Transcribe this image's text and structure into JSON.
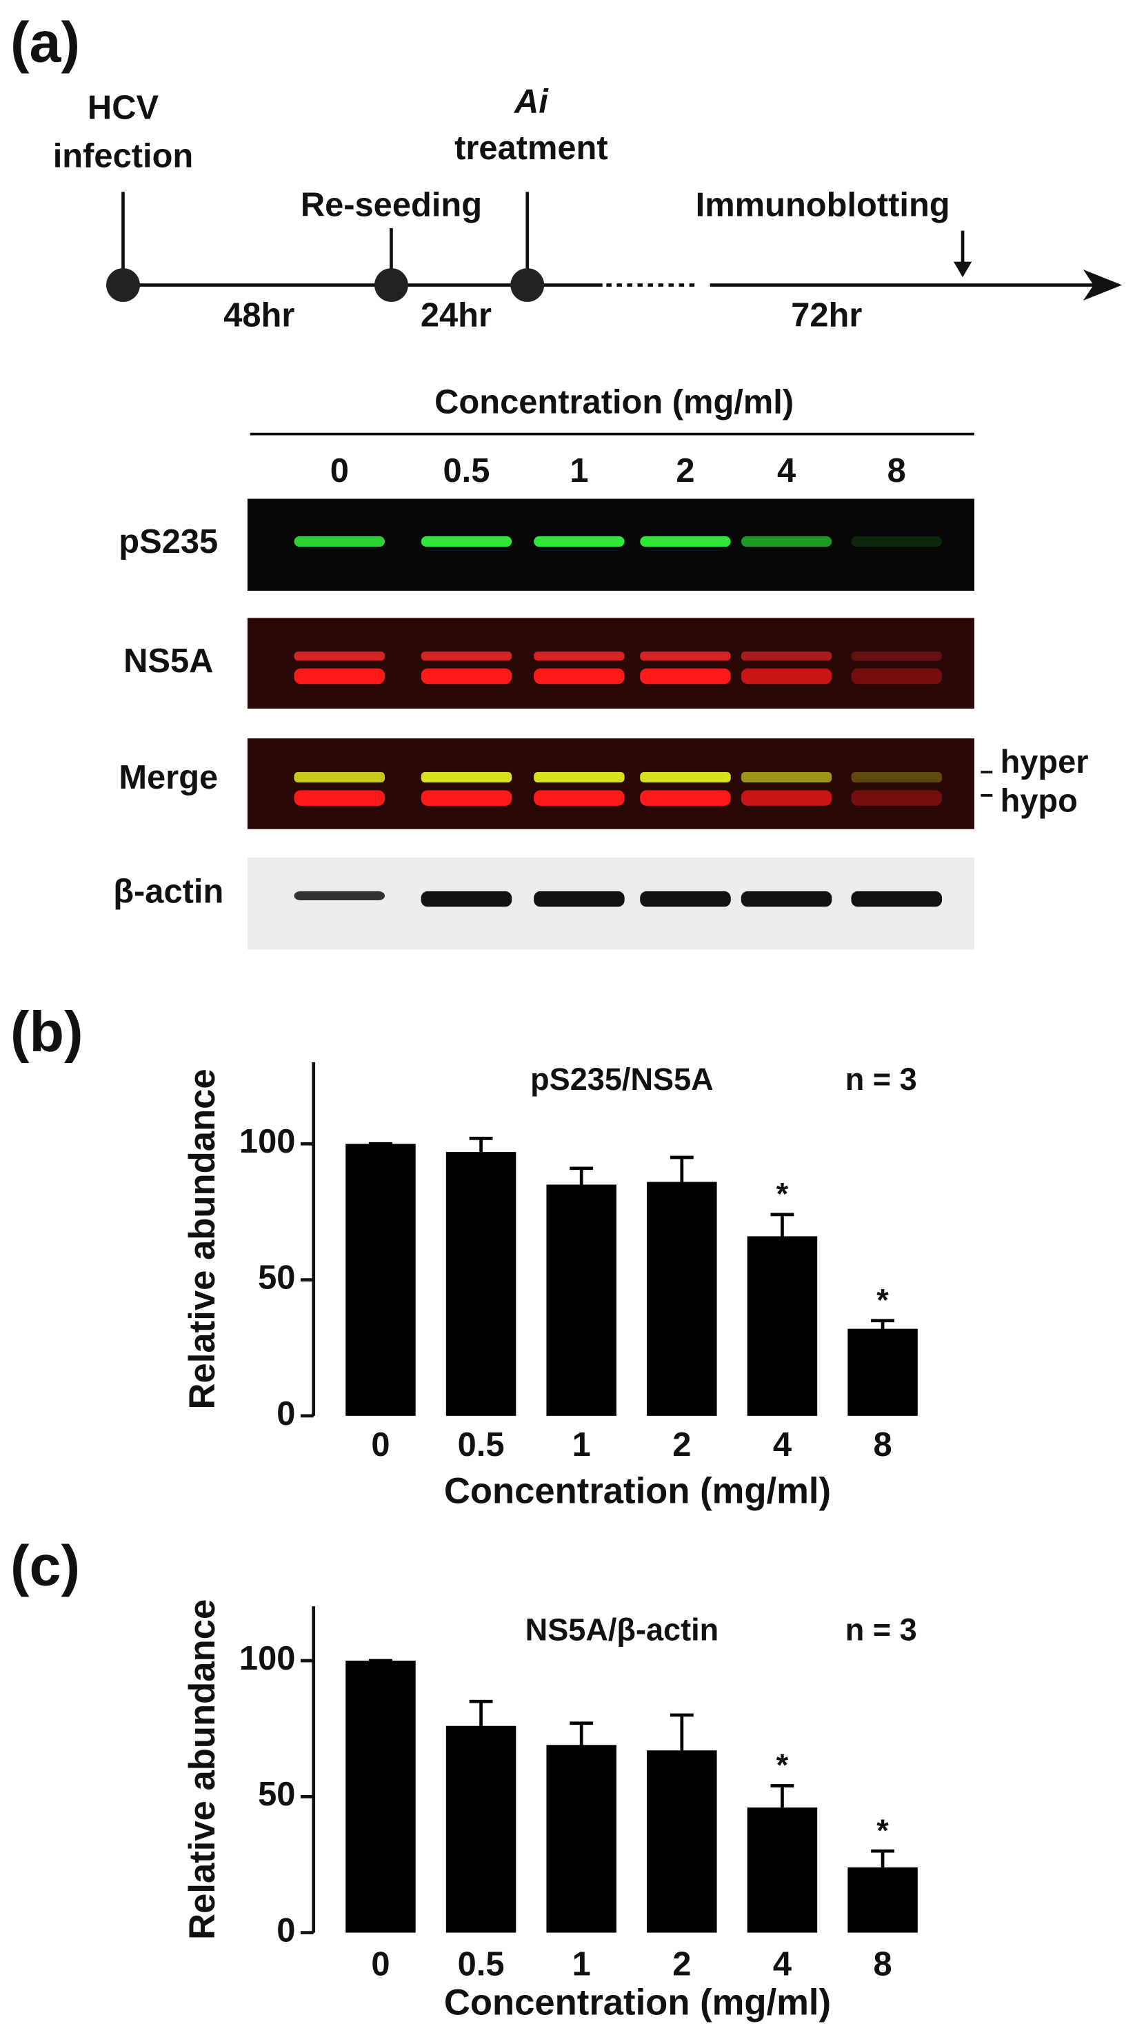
{
  "panel_labels": [
    "(a)",
    "(b)",
    "(c)"
  ],
  "timeline": {
    "events": [
      [
        "HCV",
        "infection"
      ],
      [
        "Re-seeding"
      ],
      [
        "Ai",
        "treatment"
      ],
      [
        "Immunoblotting"
      ]
    ],
    "durations": [
      "48hr",
      "24hr",
      "72hr"
    ]
  },
  "blot": {
    "header": "Concentration (mg/ml)",
    "lanes": [
      "0",
      "0.5",
      "1",
      "2",
      "4",
      "8"
    ],
    "rows": [
      "pS235",
      "NS5A",
      "Merge",
      "β-actin"
    ],
    "bands": [
      "hyper",
      "hypo"
    ]
  },
  "chart_data": [
    {
      "type": "bar",
      "title": "pS235/NS5A",
      "annotation": "n = 3",
      "x_label": "Concentration (mg/ml)",
      "y_label": "Relative abundance",
      "categories": [
        "0",
        "0.5",
        "1",
        "2",
        "4",
        "8"
      ],
      "values": [
        100,
        97,
        85,
        86,
        66,
        32
      ],
      "errors": [
        0,
        5,
        6,
        9,
        8,
        3
      ],
      "significance": [
        null,
        null,
        null,
        null,
        "*",
        "*"
      ],
      "color": "#000000",
      "ylim": [
        0,
        130
      ],
      "yticks": [
        0,
        50,
        100
      ]
    },
    {
      "type": "bar",
      "title": "NS5A/β-actin",
      "annotation": "n = 3",
      "x_label": "Concentration (mg/ml)",
      "y_label": "Relative abundance",
      "categories": [
        "0",
        "0.5",
        "1",
        "2",
        "4",
        "8"
      ],
      "values": [
        100,
        76,
        69,
        67,
        46,
        24
      ],
      "errors": [
        0,
        9,
        8,
        13,
        8,
        6
      ],
      "significance": [
        null,
        null,
        null,
        null,
        "*",
        "*"
      ],
      "color": "#000000",
      "ylim": [
        0,
        120
      ],
      "yticks": [
        0,
        50,
        100
      ]
    }
  ]
}
